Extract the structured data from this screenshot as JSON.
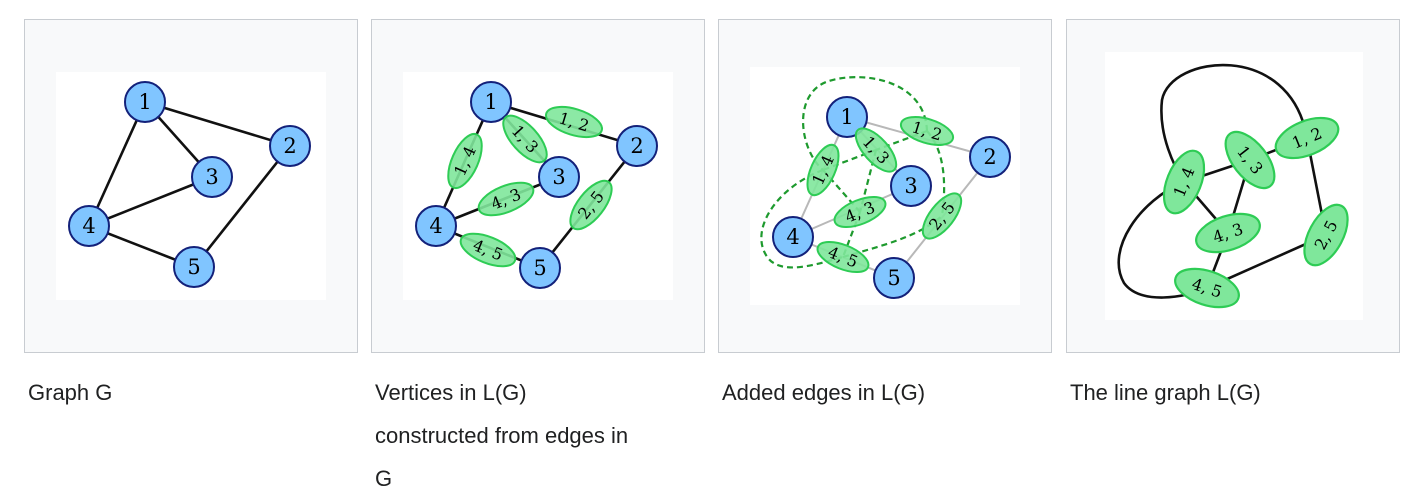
{
  "colors": {
    "vertex_fill": "#80c5ff",
    "vertex_stroke": "#13217a",
    "edge_node_fill": "#7fe79b",
    "edge_node_stroke": "#2ecc55",
    "added_edge": "#1e9a2e",
    "faded_edge": "#b8b8b8",
    "panel_bg": "#f8f9fa",
    "panel_border": "#c8ccd1",
    "caption_text": "#202122"
  },
  "vertices": [
    "1",
    "2",
    "3",
    "4",
    "5"
  ],
  "edge_vertices": [
    "1, 2",
    "1, 3",
    "1, 4",
    "4, 3",
    "2, 5",
    "4, 5"
  ],
  "panels": [
    {
      "caption_lines": [
        "Graph G"
      ]
    },
    {
      "caption_lines": [
        "Vertices in L(G)",
        "constructed from edges in",
        "G"
      ]
    },
    {
      "caption_lines": [
        "Added edges in L(G)"
      ]
    },
    {
      "caption_lines": [
        "The line graph L(G)"
      ]
    }
  ]
}
